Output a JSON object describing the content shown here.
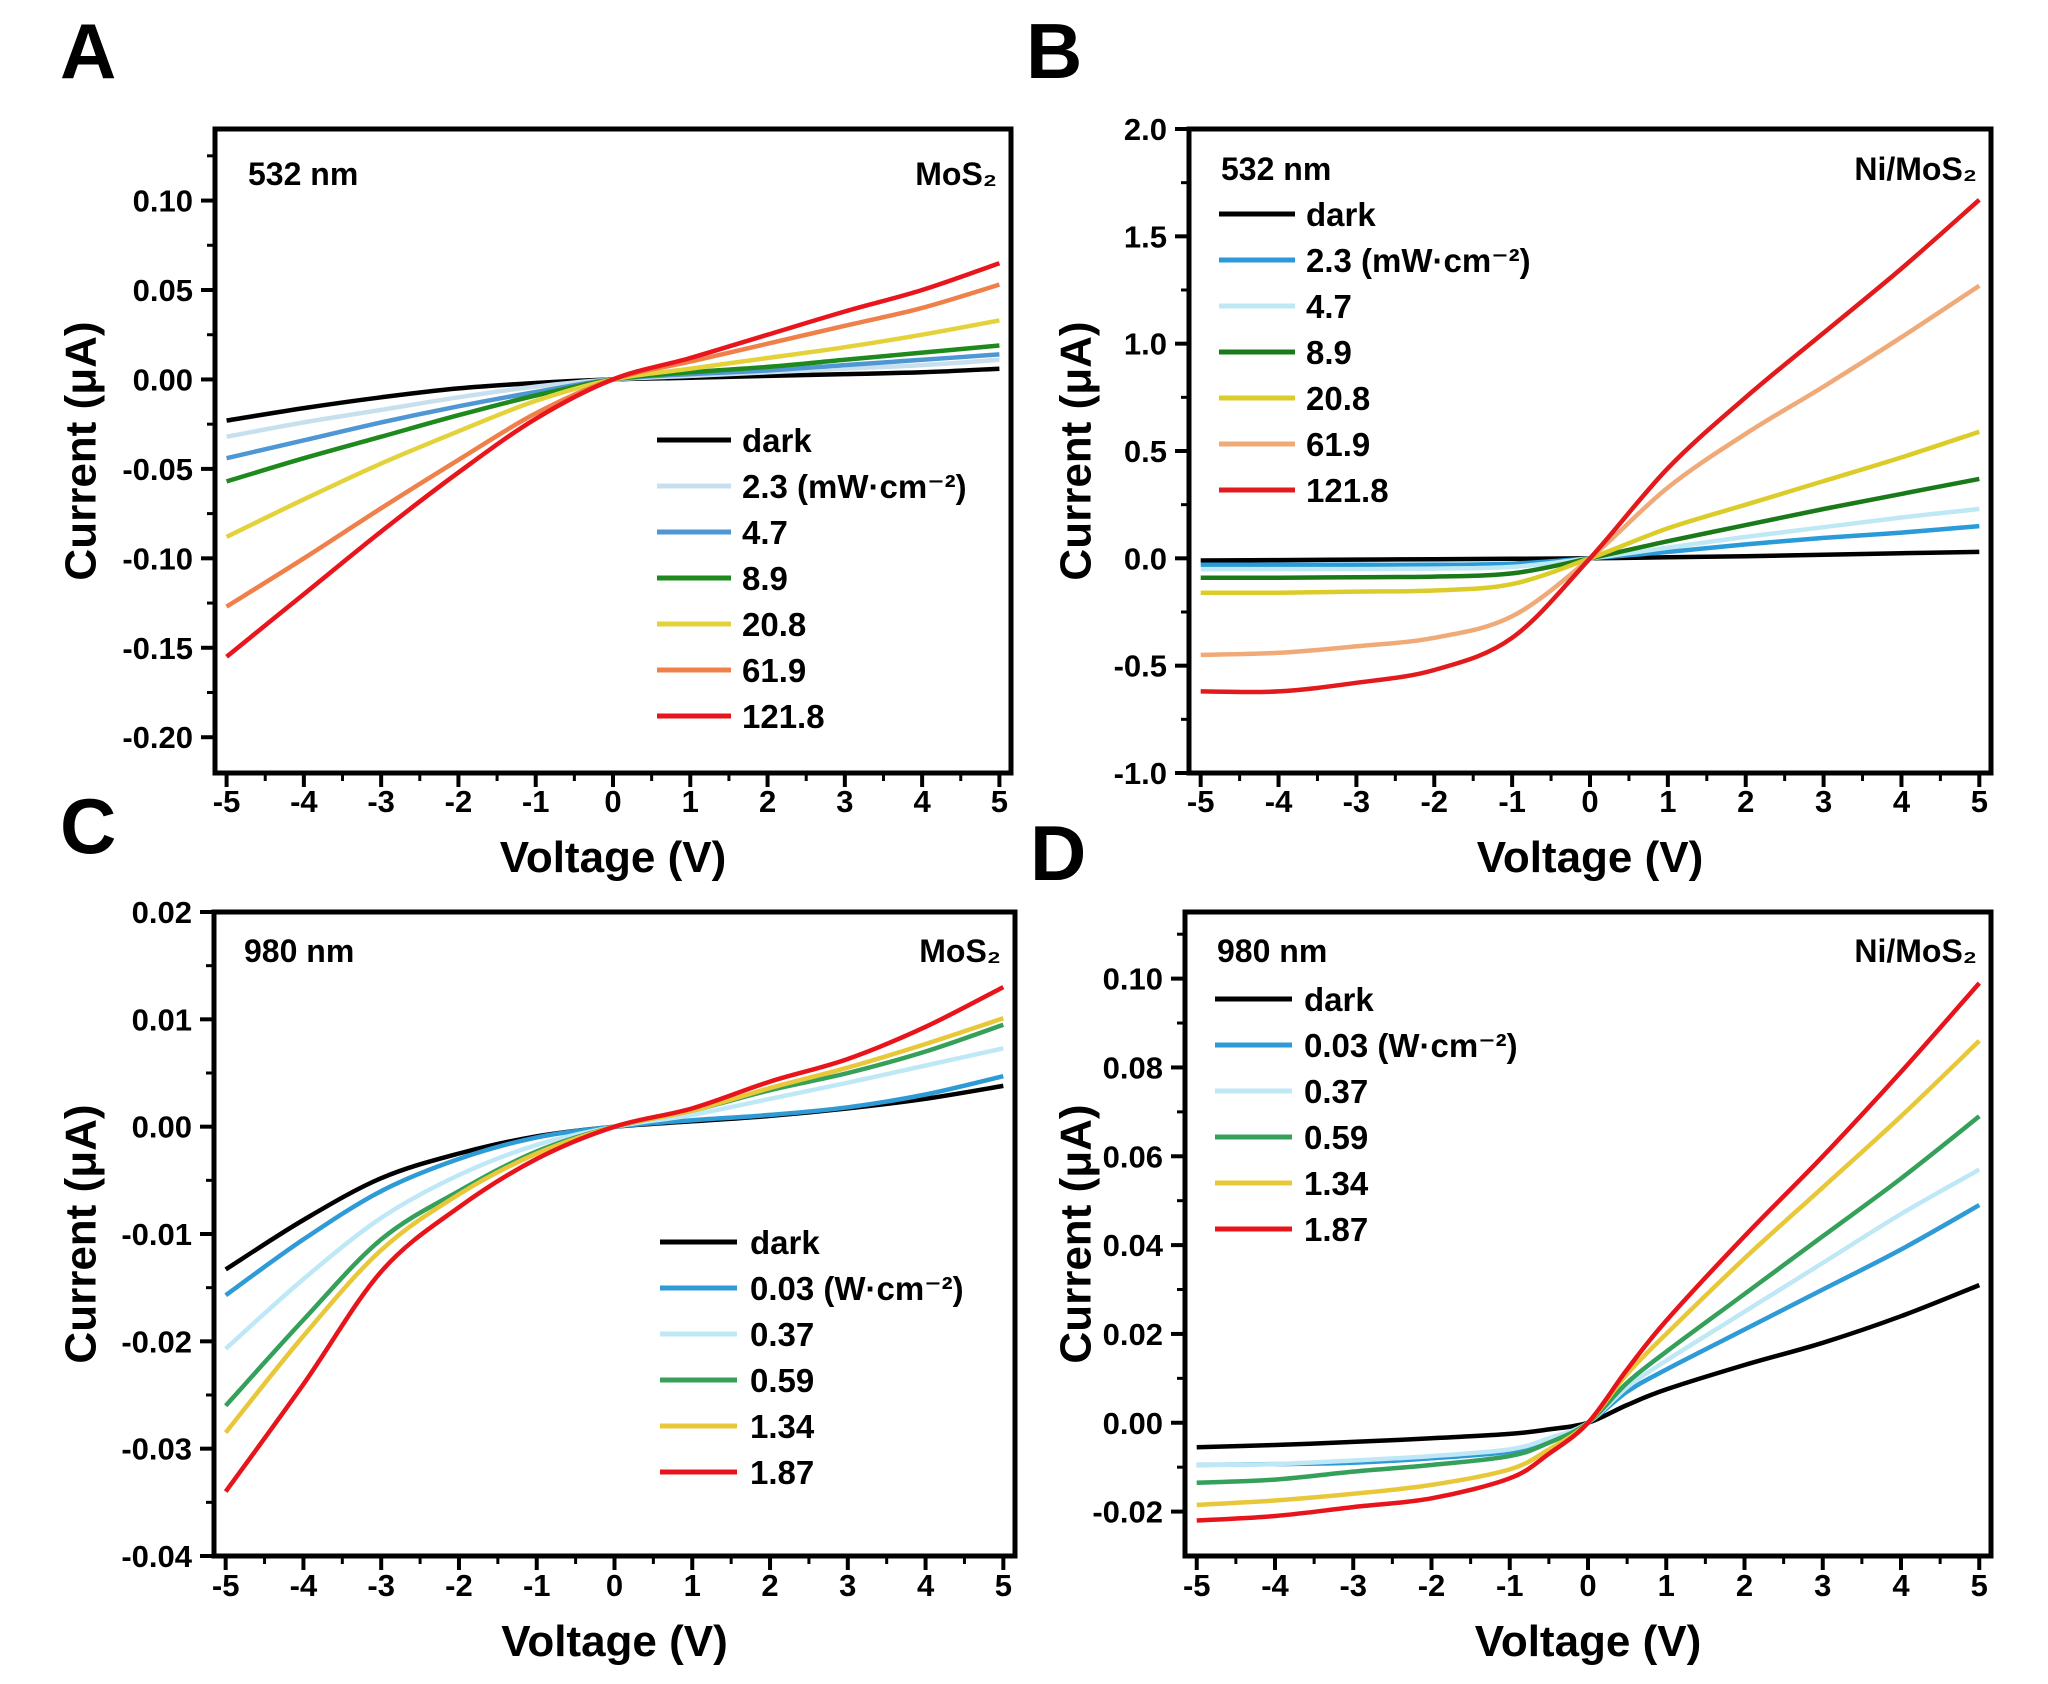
{
  "chart_data": [
    {
      "panel": "A",
      "type": "line",
      "xlabel": "Voltage (V)",
      "ylabel": "Current (μA)",
      "xlim": [
        -5.15,
        5.15
      ],
      "ylim": [
        -0.22,
        0.14
      ],
      "xticks": [
        -5,
        -4,
        -3,
        -2,
        -1,
        0,
        1,
        2,
        3,
        4,
        5
      ],
      "yticks": [
        0.1,
        0.05,
        0.0,
        -0.05,
        -0.1,
        -0.15,
        -0.2
      ],
      "ydecimals": 2,
      "annotation_left": "532 nm",
      "annotation_right": "MoS₂",
      "legend_placement": "bottom-right",
      "grid": false,
      "x": [
        -5,
        -4,
        -3,
        -2,
        -1,
        0,
        1,
        2,
        3,
        4,
        5
      ],
      "series": [
        {
          "name": "dark",
          "color": "#000000",
          "y": [
            -0.023,
            -0.016,
            -0.01,
            -0.005,
            -0.002,
            0,
            0.001,
            0.002,
            0.003,
            0.004,
            0.006
          ]
        },
        {
          "name": "2.3 (mW·cm⁻²)",
          "color": "#c8e0ee",
          "y": [
            -0.032,
            -0.024,
            -0.017,
            -0.01,
            -0.004,
            0,
            0.002,
            0.004,
            0.006,
            0.008,
            0.011
          ]
        },
        {
          "name": "4.7",
          "color": "#4f96d4",
          "y": [
            -0.044,
            -0.034,
            -0.024,
            -0.015,
            -0.007,
            0,
            0.003,
            0.005,
            0.008,
            0.011,
            0.014
          ]
        },
        {
          "name": "8.9",
          "color": "#1e8a1e",
          "y": [
            -0.057,
            -0.044,
            -0.032,
            -0.02,
            -0.009,
            0,
            0.004,
            0.007,
            0.011,
            0.015,
            0.019
          ]
        },
        {
          "name": "20.8",
          "color": "#e4d23a",
          "y": [
            -0.088,
            -0.067,
            -0.047,
            -0.029,
            -0.012,
            0,
            0.006,
            0.012,
            0.018,
            0.025,
            0.033
          ]
        },
        {
          "name": "61.9",
          "color": "#f0804a",
          "y": [
            -0.127,
            -0.1,
            -0.072,
            -0.045,
            -0.019,
            0,
            0.01,
            0.02,
            0.03,
            0.04,
            0.053
          ]
        },
        {
          "name": "121.8",
          "color": "#e8161c",
          "y": [
            -0.155,
            -0.12,
            -0.085,
            -0.052,
            -0.022,
            0,
            0.012,
            0.025,
            0.038,
            0.05,
            0.065
          ]
        }
      ]
    },
    {
      "panel": "B",
      "type": "line",
      "xlabel": "Voltage (V)",
      "ylabel": "Current (μA)",
      "xlim": [
        -5.15,
        5.15
      ],
      "ylim": [
        -1.0,
        2.0
      ],
      "xticks": [
        -5,
        -4,
        -3,
        -2,
        -1,
        0,
        1,
        2,
        3,
        4,
        5
      ],
      "yticks": [
        2.0,
        1.5,
        1.0,
        0.5,
        0.0,
        -0.5,
        -1.0
      ],
      "ydecimals": 1,
      "annotation_left": "532 nm",
      "annotation_right": "Ni/MoS₂",
      "legend_placement": "top-left",
      "grid": false,
      "x": [
        -5,
        -4,
        -3,
        -2,
        -1,
        0,
        1,
        2,
        3,
        4,
        5
      ],
      "series": [
        {
          "name": "dark",
          "color": "#000000",
          "y": [
            -0.01,
            -0.008,
            -0.006,
            -0.004,
            -0.002,
            0,
            0.005,
            0.01,
            0.017,
            0.024,
            0.03
          ]
        },
        {
          "name": "2.3 (mW·cm⁻²)",
          "color": "#2a9ad8",
          "y": [
            -0.03,
            -0.03,
            -0.03,
            -0.03,
            -0.025,
            0,
            0.03,
            0.065,
            0.095,
            0.12,
            0.15
          ]
        },
        {
          "name": "4.7",
          "color": "#bfe8f5",
          "y": [
            -0.05,
            -0.05,
            -0.05,
            -0.048,
            -0.04,
            0,
            0.05,
            0.1,
            0.145,
            0.19,
            0.23
          ]
        },
        {
          "name": "8.9",
          "color": "#1a7a1a",
          "y": [
            -0.09,
            -0.09,
            -0.088,
            -0.085,
            -0.07,
            0,
            0.08,
            0.155,
            0.23,
            0.3,
            0.37
          ]
        },
        {
          "name": "20.8",
          "color": "#dccc2a",
          "y": [
            -0.16,
            -0.16,
            -0.155,
            -0.15,
            -0.12,
            0,
            0.14,
            0.25,
            0.36,
            0.47,
            0.59
          ]
        },
        {
          "name": "61.9",
          "color": "#f0aa78",
          "y": [
            -0.45,
            -0.44,
            -0.41,
            -0.37,
            -0.27,
            0,
            0.33,
            0.58,
            0.8,
            1.03,
            1.27
          ]
        },
        {
          "name": "121.8",
          "color": "#e31a1c",
          "y": [
            -0.62,
            -0.62,
            -0.58,
            -0.52,
            -0.37,
            0,
            0.42,
            0.75,
            1.05,
            1.35,
            1.67
          ]
        }
      ]
    },
    {
      "panel": "C",
      "type": "line",
      "xlabel": "Voltage (V)",
      "ylabel": "Current (μA)",
      "xlim": [
        -5.15,
        5.15
      ],
      "ylim": [
        -0.04,
        0.02
      ],
      "xticks": [
        -5,
        -4,
        -3,
        -2,
        -1,
        0,
        1,
        2,
        3,
        4,
        5
      ],
      "yticks": [
        0.02,
        0.01,
        0.0,
        -0.01,
        -0.02,
        -0.03,
        -0.04
      ],
      "ydecimals": 2,
      "annotation_left": "980 nm",
      "annotation_right": "MoS₂",
      "legend_placement": "bottom-right",
      "grid": false,
      "x": [
        -5,
        -4,
        -3,
        -2,
        -1,
        0,
        1,
        2,
        3,
        4,
        5
      ],
      "series": [
        {
          "name": "dark",
          "color": "#000000",
          "y": [
            -0.0133,
            -0.0087,
            -0.0048,
            -0.0025,
            -0.0009,
            0,
            0.0005,
            0.001,
            0.0017,
            0.0026,
            0.0038
          ]
        },
        {
          "name": "0.03 (W·cm⁻²)",
          "color": "#2e9ad6",
          "y": [
            -0.0157,
            -0.0105,
            -0.006,
            -0.003,
            -0.001,
            0,
            0.0006,
            0.0011,
            0.0018,
            0.003,
            0.0047
          ]
        },
        {
          "name": "0.37",
          "color": "#bfe8f7",
          "y": [
            -0.0207,
            -0.0142,
            -0.0085,
            -0.0045,
            -0.0017,
            0,
            0.0011,
            0.0026,
            0.0041,
            0.0057,
            0.0073
          ]
        },
        {
          "name": "0.59",
          "color": "#34a05a",
          "y": [
            -0.026,
            -0.018,
            -0.0105,
            -0.006,
            -0.0023,
            0,
            0.0015,
            0.0034,
            0.005,
            0.007,
            0.0095
          ]
        },
        {
          "name": "1.34",
          "color": "#e8c838",
          "y": [
            -0.0285,
            -0.0195,
            -0.0115,
            -0.0063,
            -0.0025,
            0,
            0.0015,
            0.0036,
            0.0055,
            0.0077,
            0.0101
          ]
        },
        {
          "name": "1.87",
          "color": "#e8141c",
          "y": [
            -0.034,
            -0.024,
            -0.0135,
            -0.0075,
            -0.003,
            0,
            0.0017,
            0.0042,
            0.0063,
            0.0093,
            0.013
          ]
        }
      ]
    },
    {
      "panel": "D",
      "type": "line",
      "xlabel": "Voltage (V)",
      "ylabel": "Current (μA)",
      "xlim": [
        -5.15,
        5.15
      ],
      "ylim": [
        -0.03,
        0.115
      ],
      "xticks": [
        -5,
        -4,
        -3,
        -2,
        -1,
        0,
        1,
        2,
        3,
        4,
        5
      ],
      "yticks": [
        0.1,
        0.08,
        0.06,
        0.04,
        0.02,
        0.0,
        -0.02
      ],
      "ydecimals": 2,
      "annotation_left": "980 nm",
      "annotation_right": "Ni/MoS₂",
      "legend_placement": "top-left",
      "grid": false,
      "x": [
        -5,
        -4,
        -3,
        -2,
        -1,
        -0.5,
        0,
        0.5,
        1,
        2,
        3,
        4,
        5
      ],
      "series": [
        {
          "name": "dark",
          "color": "#000000",
          "y": [
            -0.0055,
            -0.005,
            -0.0043,
            -0.0035,
            -0.0025,
            -0.0015,
            0,
            0.004,
            0.0075,
            0.013,
            0.018,
            0.024,
            0.031
          ]
        },
        {
          "name": "0.03 (W·cm⁻²)",
          "color": "#2e9ad6",
          "y": [
            -0.0095,
            -0.0093,
            -0.009,
            -0.008,
            -0.0065,
            -0.004,
            0,
            0.007,
            0.012,
            0.021,
            0.03,
            0.039,
            0.049
          ]
        },
        {
          "name": "0.37",
          "color": "#bfe8f7",
          "y": [
            -0.0095,
            -0.0093,
            -0.0085,
            -0.0075,
            -0.006,
            -0.0035,
            0,
            0.008,
            0.014,
            0.025,
            0.036,
            0.047,
            0.057
          ]
        },
        {
          "name": "0.59",
          "color": "#34a05a",
          "y": [
            -0.0135,
            -0.0128,
            -0.011,
            -0.0095,
            -0.0075,
            -0.0045,
            0,
            0.009,
            0.016,
            0.029,
            0.042,
            0.055,
            0.069
          ]
        },
        {
          "name": "1.34",
          "color": "#e8c838",
          "y": [
            -0.0185,
            -0.0175,
            -0.016,
            -0.014,
            -0.0105,
            -0.006,
            0,
            0.011,
            0.02,
            0.037,
            0.053,
            0.069,
            0.086
          ]
        },
        {
          "name": "1.87",
          "color": "#e8141c",
          "y": [
            -0.022,
            -0.021,
            -0.019,
            -0.017,
            -0.0125,
            -0.007,
            0,
            0.012,
            0.023,
            0.042,
            0.06,
            0.079,
            0.099
          ]
        }
      ]
    }
  ]
}
